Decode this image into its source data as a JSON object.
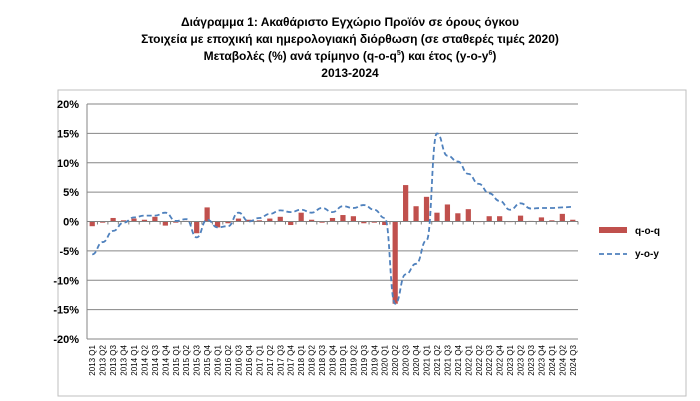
{
  "chart_data": {
    "type": "bar+line",
    "title_lines": [
      "Διάγραμμα 1: Ακαθάριστο Εγχώριο Προϊόν σε όρους όγκου",
      "Στοιχεία με εποχική και ημερολογιακή διόρθωση (σε σταθερές τιμές 2020)",
      "Μεταβολές (%) ανά τρίμηνο (q-o-q",
      "5",
      ") και έτος (y-o-y",
      "6",
      ")",
      "2013-2024"
    ],
    "ylim": [
      -20,
      20
    ],
    "yticks": [
      "20%",
      "15%",
      "10%",
      "5%",
      "0%",
      "-5%",
      "-10%",
      "-15%",
      "-20%"
    ],
    "ytick_values": [
      20,
      15,
      10,
      5,
      0,
      -5,
      -10,
      -15,
      -20
    ],
    "grid": true,
    "legend_position": "right",
    "categories": [
      "2013 Q1",
      "2013 Q2",
      "2013 Q3",
      "2013 Q4",
      "2014 Q1",
      "2014 Q2",
      "2014 Q3",
      "2014 Q4",
      "2015 Q1",
      "2015 Q2",
      "2015 Q3",
      "2015 Q4",
      "2016 Q1",
      "2016 Q2",
      "2016 Q3",
      "2016 Q4",
      "2017 Q1",
      "2017 Q2",
      "2017 Q3",
      "2017 Q4",
      "2018 Q1",
      "2018 Q2",
      "2018 Q3",
      "2018 Q4",
      "2019 Q1",
      "2019 Q2",
      "2019 Q3",
      "2019 Q4",
      "2020 Q1",
      "2020 Q2",
      "2020 Q3",
      "2020 Q4",
      "2021 Q1",
      "2021 Q2",
      "2021 Q3",
      "2021 Q4",
      "2022 Q1",
      "2022 Q2",
      "2022 Q3",
      "2022 Q4",
      "2023 Q1",
      "2023 Q2",
      "2023 Q3",
      "2023 Q4",
      "2024 Q1",
      "2024 Q2",
      "2024 Q3"
    ],
    "series": [
      {
        "name": "q-o-q",
        "kind": "bar",
        "color": "#c0504d",
        "values": [
          -0.8,
          -0.2,
          0.6,
          0.2,
          0.5,
          0.3,
          0.8,
          -0.7,
          -0.2,
          0.1,
          -2.0,
          2.4,
          -1.0,
          -0.3,
          0.5,
          0.3,
          0.2,
          0.5,
          0.8,
          -0.6,
          1.5,
          0.3,
          -0.2,
          0.6,
          1.1,
          0.9,
          -0.3,
          -0.2,
          -0.6,
          -14.0,
          6.2,
          2.6,
          4.2,
          1.5,
          2.9,
          1.4,
          2.1,
          -0.1,
          0.9,
          0.9,
          -0.1,
          1.0,
          0.1,
          0.7,
          0.2,
          1.3,
          0.3
        ]
      },
      {
        "name": "y-o-y",
        "kind": "line",
        "color": "#4f81bd",
        "dash": true,
        "values": [
          -5.6,
          -3.5,
          -1.6,
          -0.2,
          0.7,
          1.0,
          1.0,
          1.5,
          0.1,
          0.4,
          -2.7,
          0.3,
          -1.0,
          -0.8,
          1.5,
          0.0,
          0.6,
          1.3,
          1.9,
          1.6,
          2.0,
          1.5,
          2.3,
          1.6,
          2.6,
          2.3,
          2.8,
          2.0,
          0.6,
          -14.0,
          -9.0,
          -7.2,
          -3.2,
          15.0,
          11.2,
          10.2,
          8.1,
          6.4,
          4.8,
          3.5,
          2.0,
          3.1,
          2.2,
          2.3,
          2.3,
          2.4,
          2.5
        ]
      }
    ]
  }
}
